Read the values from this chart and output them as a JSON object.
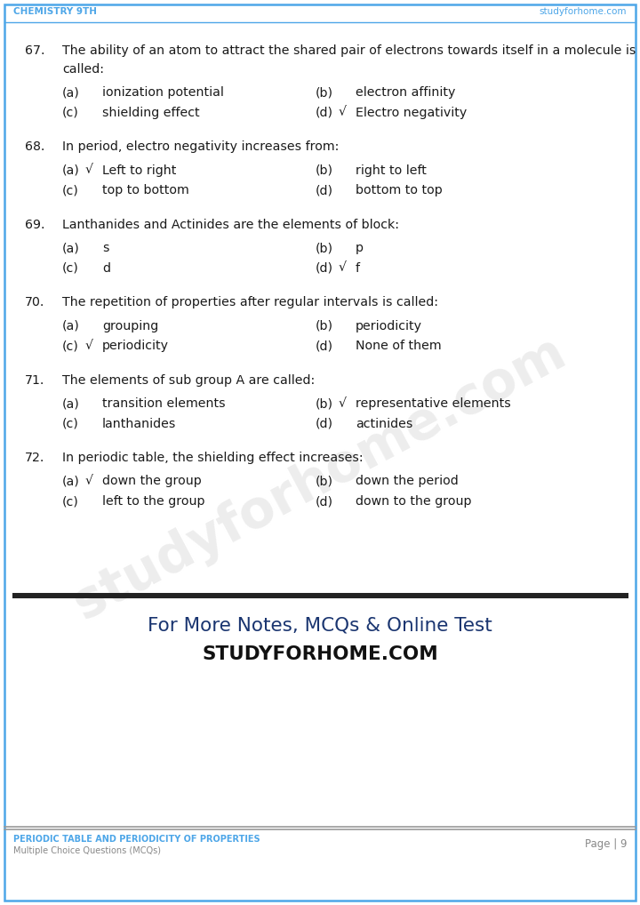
{
  "header_left": "CHEMISTRY 9TH",
  "header_right": "studyforhome.com",
  "header_color": "#4DA6E8",
  "footer_left_line1": "PERIODIC TABLE AND PERIODICITY OF PROPERTIES",
  "footer_left_line2": "Multiple Choice Questions (MCQs)",
  "footer_right": "Page | 9",
  "footer_color": "#4DA6E8",
  "bg_color": "#FFFFFF",
  "border_color": "#4DA6E8",
  "promo_line1": "For More Notes, MCQs & Online Test",
  "promo_line2": "STUDYFORHOME.COM",
  "questions": [
    {
      "num": "67.",
      "text": "The ability of an atom to attract the shared pair of electrons towards itself in a molecule is called:",
      "text2": "called:",
      "multiline": true,
      "line1": "The ability of an atom to attract the shared pair of electrons towards itself in a molecule is",
      "line2": "called:",
      "options": [
        {
          "label": "(a)",
          "check": "",
          "text": "ionization potential"
        },
        {
          "label": "(b)",
          "check": "",
          "text": "electron affinity"
        },
        {
          "label": "(c)",
          "check": "",
          "text": "shielding effect"
        },
        {
          "label": "(d)",
          "check": "√",
          "text": "Electro negativity"
        }
      ]
    },
    {
      "num": "68.",
      "text": "In period, electro negativity increases from:",
      "multiline": false,
      "options": [
        {
          "label": "(a)",
          "check": "√",
          "text": "Left to right"
        },
        {
          "label": "(b)",
          "check": "",
          "text": "right to left"
        },
        {
          "label": "(c)",
          "check": "",
          "text": "top to bottom"
        },
        {
          "label": "(d)",
          "check": "",
          "text": "bottom to top"
        }
      ]
    },
    {
      "num": "69.",
      "text": "Lanthanides and Actinides are the elements of block:",
      "multiline": false,
      "options": [
        {
          "label": "(a)",
          "check": "",
          "text": "s"
        },
        {
          "label": "(b)",
          "check": "",
          "text": "p"
        },
        {
          "label": "(c)",
          "check": "",
          "text": "d"
        },
        {
          "label": "(d)",
          "check": "√",
          "text": "f"
        }
      ]
    },
    {
      "num": "70.",
      "text": "The repetition of properties after regular intervals is called:",
      "multiline": false,
      "options": [
        {
          "label": "(a)",
          "check": "",
          "text": "grouping"
        },
        {
          "label": "(b)",
          "check": "",
          "text": "periodicity"
        },
        {
          "label": "(c)",
          "check": "√",
          "text": "periodicity"
        },
        {
          "label": "(d)",
          "check": "",
          "text": "None of them"
        }
      ]
    },
    {
      "num": "71.",
      "text": "The elements of sub group A are called:",
      "multiline": false,
      "options": [
        {
          "label": "(a)",
          "check": "",
          "text": "transition elements"
        },
        {
          "label": "(b)",
          "check": "√",
          "text": "representative elements"
        },
        {
          "label": "(c)",
          "check": "",
          "text": "lanthanides"
        },
        {
          "label": "(d)",
          "check": "",
          "text": "actinides"
        }
      ]
    },
    {
      "num": "72.",
      "text": "In periodic table, the shielding effect increases:",
      "multiline": false,
      "options": [
        {
          "label": "(a)",
          "check": "√",
          "text": "down the group"
        },
        {
          "label": "(b)",
          "check": "",
          "text": "down the period"
        },
        {
          "label": "(c)",
          "check": "",
          "text": "left to the group"
        },
        {
          "label": "(d)",
          "check": "",
          "text": "down to the group"
        }
      ]
    }
  ]
}
